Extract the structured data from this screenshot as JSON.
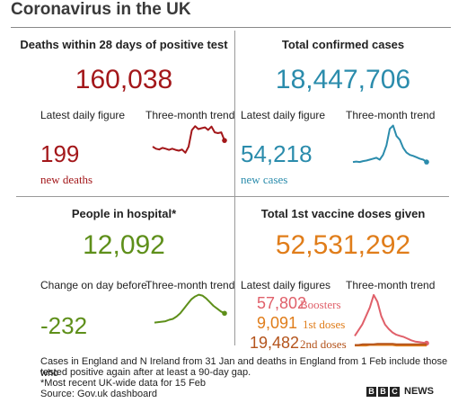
{
  "title": "Coronavirus in the UK",
  "colors": {
    "deaths": "#a3171a",
    "cases": "#2b8cac",
    "hospital": "#5e8f1a",
    "vaccine_total": "#e07d1a",
    "boosters": "#e0606a",
    "first_doses": "#e07d1a",
    "second_doses": "#b4541c"
  },
  "deaths": {
    "heading": "Deaths within 28 days of positive test",
    "total": "160,038",
    "daily_label": "Latest daily figure",
    "trend_label": "Three-month trend",
    "daily_value": "199",
    "daily_caption": "new deaths"
  },
  "cases": {
    "heading": "Total confirmed cases",
    "total": "18,447,706",
    "daily_label": "Latest daily figure",
    "trend_label": "Three-month trend",
    "daily_value": "54,218",
    "daily_caption": "new cases"
  },
  "hospital": {
    "heading": "People in hospital*",
    "total": "12,092",
    "daily_label": "Change on day before",
    "trend_label": "Three-month trend",
    "daily_value": "-232"
  },
  "vaccine": {
    "heading": "Total 1st vaccine doses given",
    "total": "52,531,292",
    "daily_label": "Latest daily figures",
    "trend_label": "Three-month trend",
    "boosters_value": "57,802",
    "boosters_label": "Boosters",
    "first_value": "9,091",
    "first_label": "1st doses",
    "second_value": "19,482",
    "second_label": "2nd doses"
  },
  "footnotes": {
    "line1": "Cases in England and N Ireland from 31 Jan and deaths in England from 1 Feb include those who",
    "line2": "tested positive again after at least a 90-day gap.",
    "line3": "*Most recent UK-wide data for 15 Feb",
    "line4": "Source: Gov.uk dashboard"
  },
  "brand": {
    "bbc_letters": [
      "B",
      "B",
      "C"
    ],
    "news": "NEWS"
  },
  "chart_data": [
    {
      "type": "line",
      "name": "deaths-trend",
      "values": [
        55,
        50,
        48,
        52,
        50,
        47,
        50,
        47,
        45,
        48,
        40,
        55,
        95,
        105,
        98,
        100,
        102,
        96,
        104,
        90,
        88,
        90,
        70
      ]
    },
    {
      "type": "line",
      "name": "cases-trend",
      "values": [
        15,
        16,
        15,
        17,
        18,
        20,
        22,
        24,
        20,
        30,
        50,
        85,
        92,
        70,
        62,
        45,
        35,
        30,
        28,
        25,
        22,
        20,
        15
      ]
    },
    {
      "type": "line",
      "name": "hospital-trend",
      "values": [
        22,
        23,
        24,
        25,
        28,
        30,
        35,
        42,
        52,
        62,
        72,
        78,
        82,
        80,
        74,
        66,
        58,
        52,
        46,
        42
      ]
    },
    {
      "type": "line",
      "name": "vaccine-trend",
      "series": [
        {
          "key": "boosters",
          "values": [
            20,
            30,
            40,
            55,
            70,
            92,
            80,
            55,
            40,
            32,
            26,
            22,
            20,
            18,
            15,
            12,
            10,
            9,
            8,
            7
          ]
        },
        {
          "key": "first_doses",
          "values": [
            3,
            3,
            3,
            3,
            4,
            4,
            4,
            4,
            4,
            4,
            4,
            3,
            3,
            3,
            3,
            3,
            3,
            3,
            3,
            3
          ]
        },
        {
          "key": "second_doses",
          "values": [
            4,
            4,
            5,
            5,
            5,
            5,
            6,
            6,
            6,
            6,
            6,
            5,
            5,
            5,
            5,
            5,
            5,
            5,
            5,
            5
          ]
        }
      ]
    }
  ]
}
